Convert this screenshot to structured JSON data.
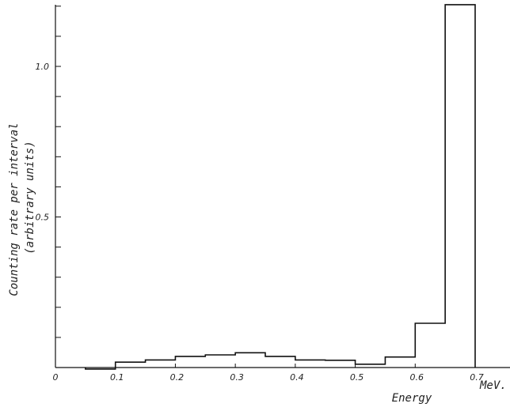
{
  "chart_data": {
    "type": "histogram",
    "title": "",
    "xlabel": "Energy",
    "xunit": "MeV.",
    "ylabel_line1": "Counting rate per interval",
    "ylabel_line2": "(arbitrary units)",
    "xlim": [
      0,
      0.74
    ],
    "ylim": [
      0,
      1.22
    ],
    "x_ticks": [
      0.1,
      0.2,
      0.3,
      0.4,
      0.5,
      0.6,
      0.7
    ],
    "x_tick_labels": [
      "0.1",
      "0.2",
      "0.3",
      "0.4",
      "0.5",
      "0.6",
      "0.7"
    ],
    "y_ticks": [
      0.1,
      0.2,
      0.3,
      0.4,
      0.5,
      0.6,
      0.7,
      0.8,
      0.9,
      1.0,
      1.1,
      1.2
    ],
    "y_tick_labels": [
      {
        "value": 0.5,
        "label": "0.5"
      },
      {
        "value": 1.0,
        "label": "1.0"
      }
    ],
    "origin_label": "0",
    "bins": [
      {
        "x0": 0.05,
        "x1": 0.1,
        "value": -0.005
      },
      {
        "x0": 0.1,
        "x1": 0.15,
        "value": 0.018
      },
      {
        "x0": 0.15,
        "x1": 0.2,
        "value": 0.025
      },
      {
        "x0": 0.2,
        "x1": 0.25,
        "value": 0.037
      },
      {
        "x0": 0.25,
        "x1": 0.3,
        "value": 0.042
      },
      {
        "x0": 0.3,
        "x1": 0.35,
        "value": 0.049
      },
      {
        "x0": 0.35,
        "x1": 0.4,
        "value": 0.037
      },
      {
        "x0": 0.4,
        "x1": 0.45,
        "value": 0.025
      },
      {
        "x0": 0.45,
        "x1": 0.5,
        "value": 0.024
      },
      {
        "x0": 0.5,
        "x1": 0.55,
        "value": 0.011
      },
      {
        "x0": 0.55,
        "x1": 0.6,
        "value": 0.035
      },
      {
        "x0": 0.6,
        "x1": 0.65,
        "value": 0.147
      },
      {
        "x0": 0.65,
        "x1": 0.7,
        "value": 1.205
      }
    ]
  }
}
